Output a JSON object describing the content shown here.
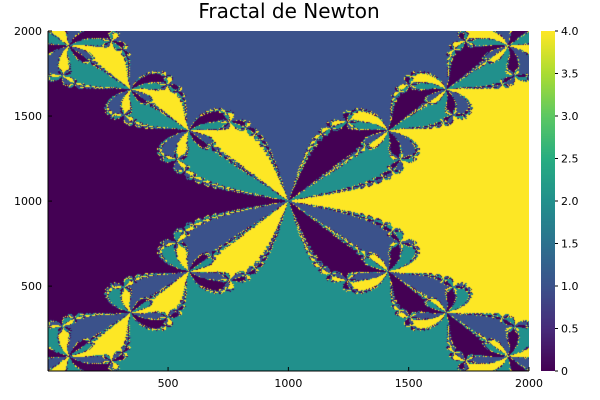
{
  "chart_data": {
    "type": "heatmap",
    "title": "Fractal de Newton",
    "xlabel": "",
    "ylabel": "",
    "xlim": [
      1,
      2000
    ],
    "ylim": [
      1,
      2000
    ],
    "x_ticks": [
      500,
      1000,
      1500,
      2000
    ],
    "y_ticks": [
      500,
      1000,
      1500,
      2000
    ],
    "colorbar": {
      "colormap": "viridis",
      "range": [
        0,
        4
      ],
      "ticks": [
        "0",
        "0.5",
        "1.0",
        "1.5",
        "2.0",
        "2.5",
        "3.0",
        "3.5",
        "4.0"
      ]
    },
    "levels": [
      0,
      1,
      2,
      4
    ],
    "level_colors": {
      "0": "#440154",
      "1": "#3b528b",
      "2": "#21908c",
      "4": "#fde725"
    },
    "grid": false,
    "legend": "colorbar-right"
  }
}
